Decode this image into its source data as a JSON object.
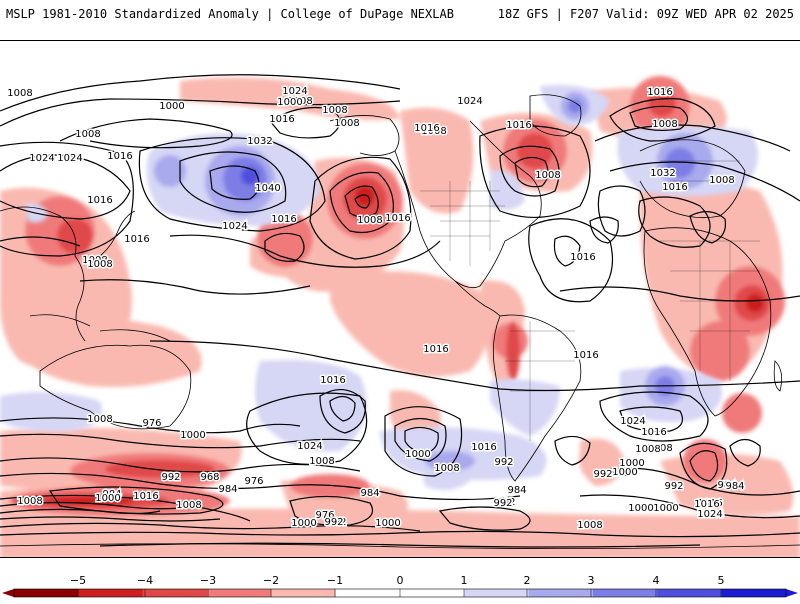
{
  "header": {
    "left_title": "MSLP 1981-2010 Standardized Anomaly | College of DuPage NEXLAB",
    "right_title": "18Z GFS | F207 Valid: 09Z WED APR 02 2025"
  },
  "colors": {
    "neg5": "#8b0000",
    "neg4": "#cc1f1f",
    "neg3": "#e04848",
    "neg2": "#f07a7a",
    "neg1": "#f9b9b0",
    "zero": "#ffffff",
    "pos1": "#d6d6f5",
    "pos2": "#a9a9ee",
    "pos3": "#7d7de6",
    "pos4": "#4f4fde",
    "pos5": "#1c1cd4"
  },
  "colorbar": {
    "ticks": [
      "−5",
      "−4",
      "−3",
      "−2",
      "−1",
      "0",
      "1",
      "2",
      "3",
      "4",
      "5"
    ]
  },
  "isobar_labels": [
    {
      "text": "1016"
    },
    {
      "text": "1008"
    },
    {
      "text": "1000"
    },
    {
      "text": "1008"
    },
    {
      "text": "1008"
    },
    {
      "text": "1016"
    },
    {
      "text": "1024"
    },
    {
      "text": "1016"
    },
    {
      "text": "1008"
    },
    {
      "text": "1016"
    },
    {
      "text": "1008"
    },
    {
      "text": "1024"
    },
    {
      "text": "1008"
    },
    {
      "text": "1032"
    },
    {
      "text": "1016"
    },
    {
      "text": "1024"
    },
    {
      "text": "1040"
    },
    {
      "text": "1024"
    },
    {
      "text": "1016"
    },
    {
      "text": "1008"
    },
    {
      "text": "1016"
    },
    {
      "text": "1000"
    },
    {
      "text": "1016"
    },
    {
      "text": "1008"
    },
    {
      "text": "1008"
    },
    {
      "text": "1016"
    },
    {
      "text": "1008"
    },
    {
      "text": "1016"
    },
    {
      "text": "1008"
    },
    {
      "text": "1024"
    },
    {
      "text": "1032"
    },
    {
      "text": "1016"
    },
    {
      "text": "1008"
    },
    {
      "text": "1016"
    },
    {
      "text": "1008"
    },
    {
      "text": "1016"
    },
    {
      "text": "1016"
    },
    {
      "text": "1016"
    },
    {
      "text": "1016"
    },
    {
      "text": "1024"
    },
    {
      "text": "1016"
    },
    {
      "text": "1008"
    },
    {
      "text": "1016"
    },
    {
      "text": "1008"
    },
    {
      "text": "1000"
    },
    {
      "text": "992"
    },
    {
      "text": "1024"
    },
    {
      "text": "1008"
    },
    {
      "text": "1000"
    },
    {
      "text": "1008"
    },
    {
      "text": "1000"
    },
    {
      "text": "992"
    },
    {
      "text": "984"
    },
    {
      "text": "992"
    },
    {
      "text": "992"
    },
    {
      "text": "976"
    },
    {
      "text": "968"
    },
    {
      "text": "984"
    },
    {
      "text": "976"
    },
    {
      "text": "992"
    },
    {
      "text": "984"
    },
    {
      "text": "1000"
    },
    {
      "text": "1008"
    },
    {
      "text": "1000"
    },
    {
      "text": "1016"
    },
    {
      "text": "1008"
    },
    {
      "text": "984"
    },
    {
      "text": "976"
    },
    {
      "text": "992"
    },
    {
      "text": "1000"
    },
    {
      "text": "1008"
    },
    {
      "text": "984"
    },
    {
      "text": "992"
    },
    {
      "text": "992"
    },
    {
      "text": "1000"
    },
    {
      "text": "1016"
    },
    {
      "text": "984"
    },
    {
      "text": "1024"
    },
    {
      "text": "1008"
    },
    {
      "text": "1000"
    },
    {
      "text": "1024"
    },
    {
      "text": "1016"
    },
    {
      "text": "1008"
    },
    {
      "text": "992"
    },
    {
      "text": "1000"
    }
  ]
}
